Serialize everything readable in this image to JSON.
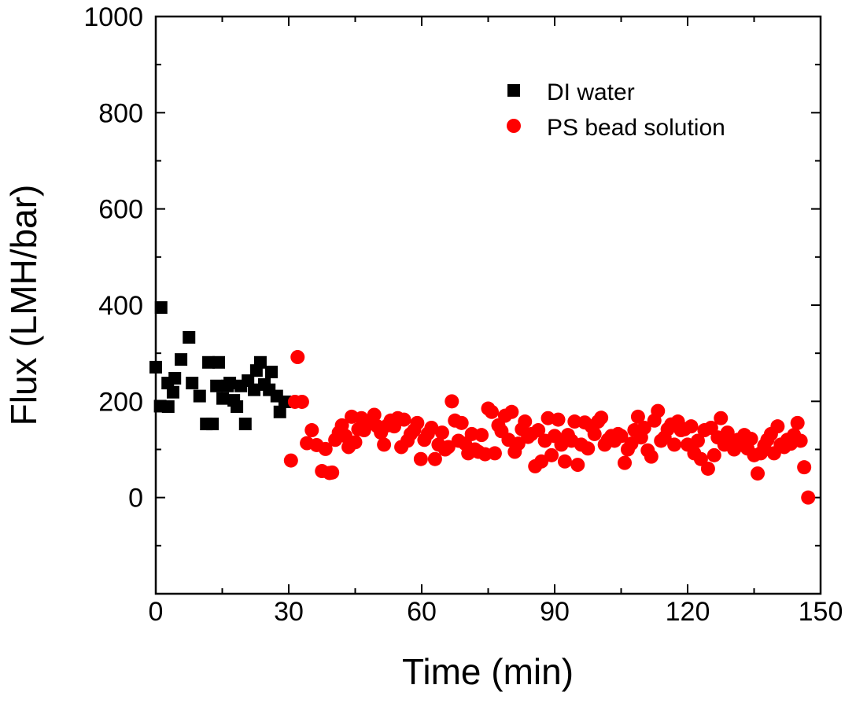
{
  "chart_data": {
    "type": "scatter",
    "title": "",
    "xlabel": "Time (min)",
    "ylabel": "Flux (LMH/bar)",
    "xlim": [
      0,
      150
    ],
    "ylim": [
      -200,
      1000
    ],
    "xticks": [
      0,
      30,
      60,
      90,
      120,
      150
    ],
    "yticks": [
      0,
      200,
      400,
      600,
      800,
      1000
    ],
    "xtick_labels": [
      "0",
      "30",
      "60",
      "90",
      "120",
      "150"
    ],
    "ytick_labels": [
      "0",
      "200",
      "400",
      "600",
      "800",
      "1000"
    ],
    "grid": false,
    "legend_position": "top-right",
    "series": [
      {
        "name": "DI water",
        "marker": "square",
        "color": "#000000",
        "x": [
          0,
          1.2,
          1,
          2.7,
          2.8,
          4.3,
          3.9,
          5.7,
          7.5,
          8.2,
          9.9,
          11.4,
          12.8,
          11.9,
          14.2,
          13.7,
          15.1,
          16.2,
          16.7,
          17.6,
          18.3,
          19.2,
          20.2,
          20.8,
          22.2,
          22.7,
          23.6,
          24.5,
          25.6,
          26.1,
          27.3,
          28,
          29.1
        ],
        "y": [
          271,
          395,
          190,
          238,
          189,
          248,
          219,
          287,
          333,
          238,
          211,
          153,
          153,
          281,
          281,
          232,
          206,
          232,
          238,
          202,
          189,
          232,
          153,
          243,
          224,
          264,
          281,
          235,
          224,
          261,
          211,
          178,
          199
        ]
      },
      {
        "name": "PS bead solution",
        "marker": "circle",
        "color": "#ff0000",
        "x": [
          30.5,
          31.4,
          32.0,
          33.0,
          34.1,
          35.2,
          36.3,
          37.5,
          38.3,
          39.2,
          39.8,
          40.5,
          41.3,
          42.0,
          42.8,
          43.5,
          44.2,
          45.0,
          45.7,
          46.4,
          47.0,
          47.8,
          48.5,
          49.3,
          50.0,
          50.8,
          51.5,
          52.3,
          53.0,
          53.8,
          54.6,
          55.4,
          56.0,
          56.8,
          57.5,
          58.3,
          59.0,
          59.8,
          60.6,
          61.4,
          62.2,
          63.0,
          63.8,
          64.6,
          65.3,
          66.0,
          66.8,
          67.5,
          68.3,
          69.0,
          69.8,
          70.5,
          71.3,
          72.0,
          72.8,
          73.5,
          74.3,
          75.0,
          75.8,
          76.5,
          77.3,
          78.0,
          78.8,
          79.6,
          80.3,
          81.0,
          81.8,
          82.6,
          83.3,
          84.0,
          84.8,
          85.6,
          86.3,
          87.0,
          87.8,
          88.5,
          89.3,
          90.0,
          90.8,
          91.5,
          92.3,
          93.0,
          93.8,
          94.5,
          95.2,
          96.0,
          96.8,
          97.5,
          98.3,
          99.0,
          99.8,
          100.5,
          101.3,
          102.0,
          102.8,
          103.5,
          104.3,
          105.0,
          105.8,
          106.5,
          107.3,
          108.0,
          108.8,
          109.5,
          110.2,
          111.0,
          111.8,
          112.5,
          113.3,
          114.0,
          114.8,
          115.5,
          116.3,
          117.0,
          117.8,
          118.5,
          119.3,
          120.0,
          120.8,
          121.5,
          122.3,
          123.0,
          123.8,
          124.6,
          125.3,
          126.0,
          126.8,
          127.5,
          128.3,
          129.0,
          129.8,
          130.5,
          131.3,
          132.0,
          132.8,
          133.5,
          134.3,
          135.0,
          135.8,
          136.5,
          137.3,
          138.0,
          138.8,
          139.5,
          140.3,
          141.0,
          141.8,
          142.5,
          143.3,
          144.0,
          144.8,
          145.5,
          146.3,
          147.2
        ],
        "y": [
          77,
          199,
          292,
          199,
          113,
          140,
          109,
          55,
          101,
          51,
          52,
          120,
          135,
          150,
          128,
          105,
          168,
          115,
          142,
          165,
          140,
          152,
          160,
          172,
          148,
          135,
          110,
          150,
          160,
          148,
          165,
          105,
          162,
          118,
          132,
          140,
          155,
          80,
          120,
          133,
          145,
          80,
          110,
          135,
          100,
          105,
          200,
          160,
          118,
          155,
          112,
          92,
          132,
          100,
          95,
          130,
          90,
          185,
          178,
          92,
          150,
          138,
          170,
          120,
          178,
          95,
          112,
          142,
          158,
          126,
          132,
          65,
          140,
          75,
          118,
          165,
          88,
          128,
          162,
          110,
          75,
          130,
          118,
          158,
          68,
          110,
          156,
          102,
          148,
          132,
          158,
          166,
          110,
          120,
          128,
          118,
          132,
          128,
          72,
          100,
          112,
          140,
          168,
          125,
          145,
          98,
          85,
          160,
          180,
          118,
          125,
          142,
          152,
          110,
          158,
          140,
          142,
          110,
          148,
          92,
          118,
          80,
          140,
          60,
          145,
          88,
          125,
          165,
          110,
          135,
          110,
          100,
          120,
          110,
          130,
          102,
          122,
          88,
          50,
          92,
          108,
          120,
          132,
          92,
          148,
          110,
          105,
          120,
          112,
          130,
          155,
          118,
          63,
          0
        ]
      }
    ]
  }
}
